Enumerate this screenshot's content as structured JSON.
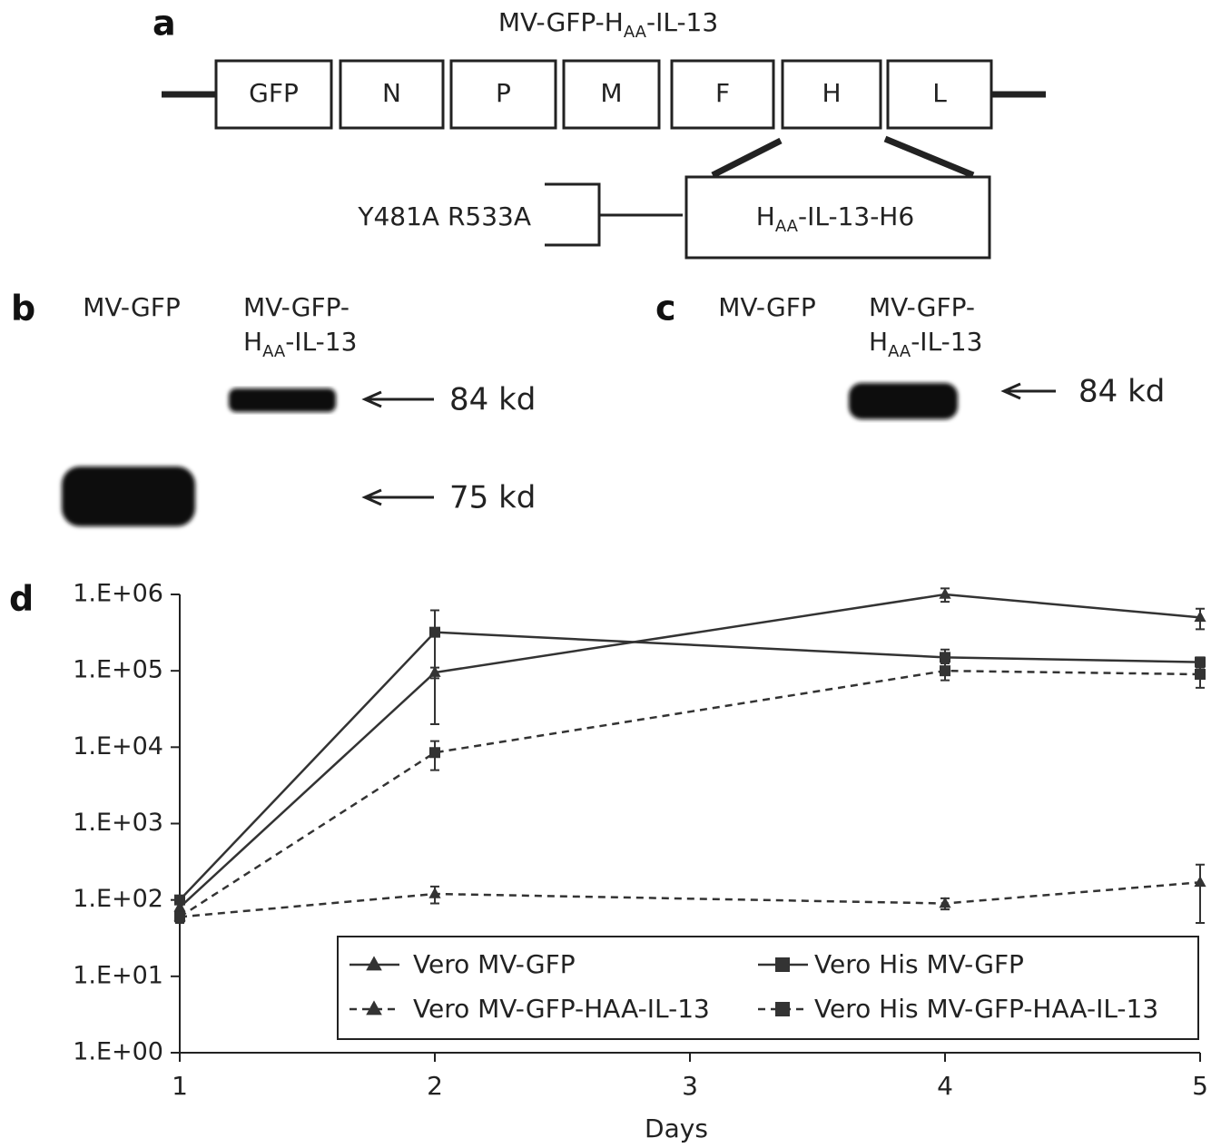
{
  "panel_a": {
    "label": "a",
    "title": [
      "MV-GFP-H",
      "AA",
      "-IL-13"
    ],
    "genes": [
      "GFP",
      "N",
      "P",
      "M",
      "F",
      "H",
      "L"
    ],
    "insert": [
      "H",
      "AA",
      "-IL-13-H6"
    ],
    "mutations": "Y481A R533A"
  },
  "panel_b": {
    "label": "b",
    "lane1": "MV-GFP",
    "lane2_line1": "MV-GFP-",
    "lane2_line2": [
      "H",
      "AA",
      "-IL-13"
    ],
    "markers": [
      "84 kd",
      "75 kd"
    ]
  },
  "panel_c": {
    "label": "c",
    "lane1": "MV-GFP",
    "lane2_line1": "MV-GFP-",
    "lane2_line2": [
      "H",
      "AA",
      "-IL-13"
    ],
    "markers": [
      "84 kd"
    ]
  },
  "chart_data": {
    "type": "line",
    "label": "d",
    "x_label": "Days",
    "log_scale": true,
    "x": [
      1,
      2,
      4,
      5
    ],
    "xlim": [
      1,
      5
    ],
    "xticks": [
      1,
      2,
      3,
      4,
      5
    ],
    "ylim": [
      1,
      1000000
    ],
    "yticks": [
      {
        "value": 1,
        "label": "1.E+00"
      },
      {
        "value": 10,
        "label": "1.E+01"
      },
      {
        "value": 100,
        "label": "1.E+02"
      },
      {
        "value": 1000,
        "label": "1.E+03"
      },
      {
        "value": 10000,
        "label": "1.E+04"
      },
      {
        "value": 100000,
        "label": "1.E+05"
      },
      {
        "value": 1000000,
        "label": "1.E+06"
      }
    ],
    "series": [
      {
        "name": "Vero MV-GFP",
        "color": "#333333",
        "marker": "triangle",
        "dashed": false,
        "values": [
          80,
          95000,
          1000000,
          500000
        ],
        "errors": [
          10,
          15000,
          200000,
          150000
        ]
      },
      {
        "name": "Vero His MV-GFP",
        "color": "#333333",
        "marker": "square",
        "dashed": false,
        "values": [
          100,
          320000,
          150000,
          130000
        ],
        "errors": [
          10,
          300000,
          40000,
          20000
        ]
      },
      {
        "name": "Vero MV-GFP-HAA-IL-13",
        "color": "#333333",
        "marker": "triangle",
        "dashed": true,
        "values": [
          60,
          120,
          90,
          170
        ],
        "errors": [
          10,
          30,
          15,
          120
        ]
      },
      {
        "name": "Vero His MV-GFP-HAA-IL-13",
        "color": "#333333",
        "marker": "square",
        "dashed": true,
        "values": [
          60,
          8500,
          100000,
          90000
        ],
        "errors": [
          10,
          3500,
          25000,
          30000
        ]
      }
    ]
  }
}
